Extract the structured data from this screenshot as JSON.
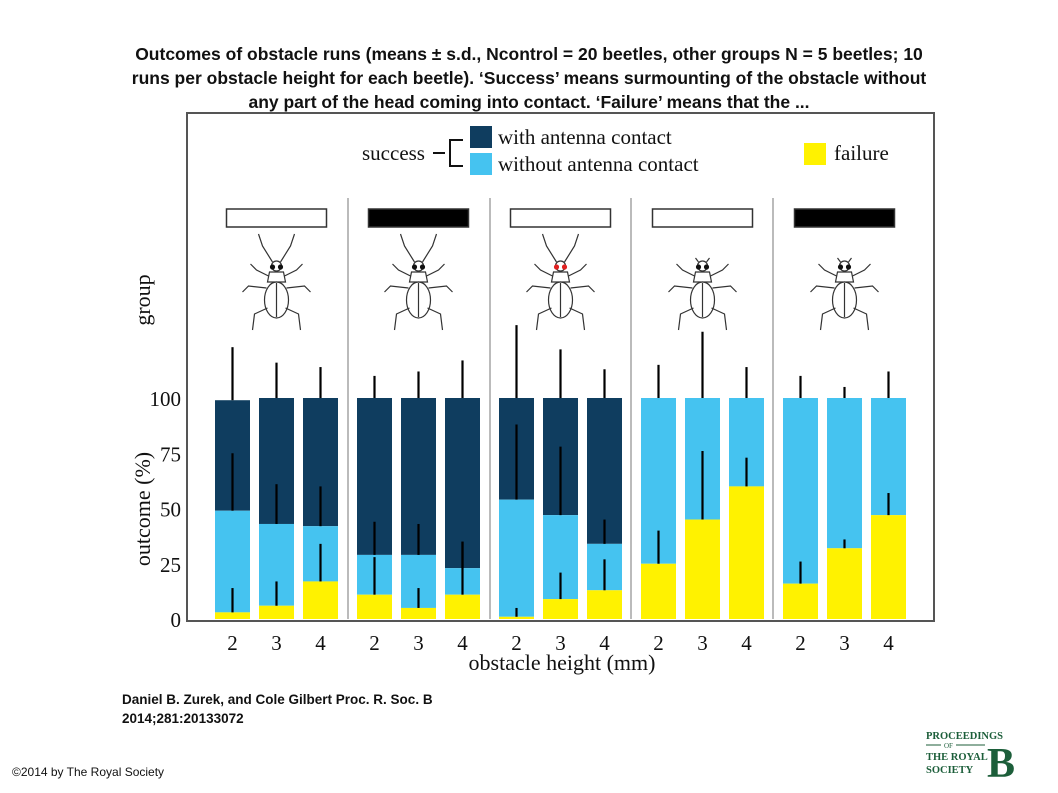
{
  "title_lines": [
    "Outcomes of obstacle runs (means ± s.d., Ncontrol = 20 beetles, other groups N = 5 beetles; 10",
    "runs per obstacle height for each beetle). ‘Success’ means surmounting of the obstacle without",
    "any part of the head coming into contact. ‘Failure’ means that the ..."
  ],
  "citation": "Daniel B. Zurek, and Cole Gilbert Proc. R. Soc. B 2014;281:20133072",
  "copyright": "©2014 by The Royal Society",
  "logo": {
    "line1": "PROCEEDINGS",
    "line2": "OF",
    "line3": "THE ROYAL",
    "line4": "SOCIETY",
    "letter": "B"
  },
  "colors": {
    "with_antenna": "#0f3d5f",
    "without_antenna": "#45c3f0",
    "failure": "#fff200",
    "error_bar": "#000000",
    "frame": "#555555",
    "separator": "#bbbbbb"
  },
  "chart_data": {
    "type": "bar",
    "stacked": true,
    "xlabel": "obstacle height (mm)",
    "ylabel": "outcome (%)",
    "group_axis_label": "group",
    "ylim": [
      0,
      100
    ],
    "yticks": [
      0,
      25,
      50,
      75,
      100
    ],
    "grid": false,
    "legend": {
      "success_label": "success",
      "entries": [
        "with antenna contact",
        "without antenna contact",
        "failure"
      ]
    },
    "groups": [
      {
        "marker": "white",
        "beetle_variant": "control",
        "bars": [
          {
            "x": "2",
            "failure": 3,
            "without_antenna_top": 49,
            "with_antenna_top": 99,
            "err_failure": 14,
            "err_without_antenna": 75,
            "err_with_antenna": 123
          },
          {
            "x": "3",
            "failure": 6,
            "without_antenna_top": 43,
            "with_antenna_top": 100,
            "err_failure": 17,
            "err_without_antenna": 61,
            "err_with_antenna": 116
          },
          {
            "x": "4",
            "failure": 17,
            "without_antenna_top": 42,
            "with_antenna_top": 100,
            "err_failure": 34,
            "err_without_antenna": 60,
            "err_with_antenna": 114
          }
        ]
      },
      {
        "marker": "black",
        "beetle_variant": "control",
        "bars": [
          {
            "x": "2",
            "failure": 11,
            "without_antenna_top": 29,
            "with_antenna_top": 100,
            "err_failure": 28,
            "err_without_antenna": 44,
            "err_with_antenna": 110
          },
          {
            "x": "3",
            "failure": 5,
            "without_antenna_top": 29,
            "with_antenna_top": 100,
            "err_failure": 14,
            "err_without_antenna": 43,
            "err_with_antenna": 112
          },
          {
            "x": "4",
            "failure": 11,
            "without_antenna_top": 23,
            "with_antenna_top": 100,
            "err_failure": 35,
            "err_without_antenna": 35,
            "err_with_antenna": 117
          }
        ]
      },
      {
        "marker": "white",
        "beetle_variant": "red-eyes",
        "bars": [
          {
            "x": "2",
            "failure": 1,
            "without_antenna_top": 54,
            "with_antenna_top": 100,
            "err_failure": 5,
            "err_without_antenna": 88,
            "err_with_antenna": 133
          },
          {
            "x": "3",
            "failure": 9,
            "without_antenna_top": 47,
            "with_antenna_top": 100,
            "err_failure": 21,
            "err_without_antenna": 78,
            "err_with_antenna": 122
          },
          {
            "x": "4",
            "failure": 13,
            "without_antenna_top": 34,
            "with_antenna_top": 100,
            "err_failure": 27,
            "err_without_antenna": 45,
            "err_with_antenna": 113
          }
        ]
      },
      {
        "marker": "white",
        "beetle_variant": "no-antennae",
        "bars": [
          {
            "x": "2",
            "failure": 25,
            "without_antenna_top": 100,
            "with_antenna_top": 100,
            "err_failure": 40,
            "err_without_antenna": 115,
            "err_with_antenna": null
          },
          {
            "x": "3",
            "failure": 45,
            "without_antenna_top": 100,
            "with_antenna_top": 100,
            "err_failure": 76,
            "err_without_antenna": 130,
            "err_with_antenna": null
          },
          {
            "x": "4",
            "failure": 60,
            "without_antenna_top": 100,
            "with_antenna_top": 100,
            "err_failure": 73,
            "err_without_antenna": 114,
            "err_with_antenna": null
          }
        ]
      },
      {
        "marker": "black",
        "beetle_variant": "no-antennae",
        "bars": [
          {
            "x": "2",
            "failure": 16,
            "without_antenna_top": 100,
            "with_antenna_top": 100,
            "err_failure": 26,
            "err_without_antenna": 110,
            "err_with_antenna": null
          },
          {
            "x": "3",
            "failure": 32,
            "without_antenna_top": 100,
            "with_antenna_top": 100,
            "err_failure": 36,
            "err_without_antenna": 105,
            "err_with_antenna": null
          },
          {
            "x": "4",
            "failure": 47,
            "without_antenna_top": 100,
            "with_antenna_top": 100,
            "err_failure": 57,
            "err_without_antenna": 112,
            "err_with_antenna": null
          }
        ]
      }
    ]
  }
}
